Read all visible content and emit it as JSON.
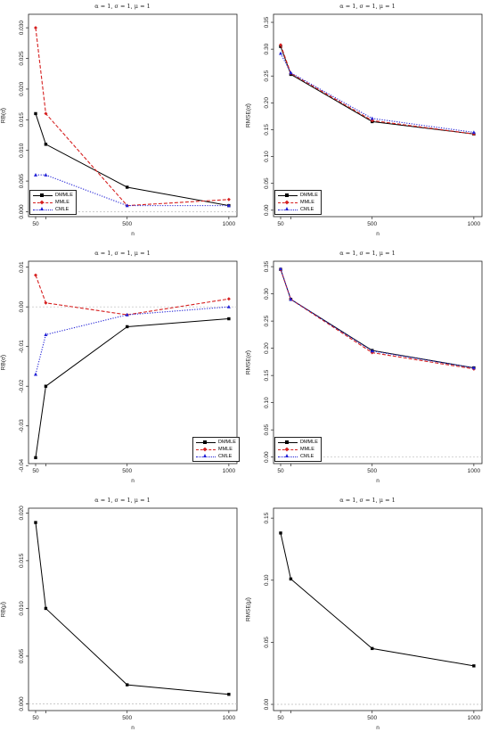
{
  "chart_data": [
    {
      "type": "line",
      "title": "α = 1, σ = 1, μ = 1",
      "xlabel": "n",
      "ylabel": "RB(α̂)",
      "x": [
        50,
        100,
        500,
        1000
      ],
      "xticks": [
        "50",
        "500",
        "1000"
      ],
      "ylim": [
        -0.0008,
        0.0322
      ],
      "yticks": [
        "0.000",
        "0.005",
        "0.010",
        "0.015",
        "0.020",
        "0.025",
        "0.030"
      ],
      "yref": 0,
      "legend_position": "bottom-left",
      "series": [
        {
          "name": "DMMLE",
          "color": "#000000",
          "values": [
            0.016,
            0.011,
            0.004,
            0.001
          ]
        },
        {
          "name": "MMLE",
          "color": "#d62020",
          "values": [
            0.03,
            0.016,
            0.001,
            0.002
          ]
        },
        {
          "name": "CMLE",
          "color": "#2020d6",
          "values": [
            0.006,
            0.006,
            0.001,
            0.001
          ]
        }
      ]
    },
    {
      "type": "line",
      "title": "α = 1, σ = 1, μ = 1",
      "xlabel": "n",
      "ylabel": "RMSE(α̂)",
      "x": [
        50,
        100,
        500,
        1000
      ],
      "xticks": [
        "50",
        "500",
        "1000"
      ],
      "ylim": [
        -0.012,
        0.365
      ],
      "yticks": [
        "0.00",
        "0.05",
        "0.10",
        "0.15",
        "0.20",
        "0.25",
        "0.30",
        "0.35"
      ],
      "yref": null,
      "legend_position": "bottom-left",
      "series": [
        {
          "name": "DMMLE",
          "color": "#000000",
          "values": [
            0.305,
            0.253,
            0.165,
            0.142
          ]
        },
        {
          "name": "MMLE",
          "color": "#d62020",
          "values": [
            0.308,
            0.255,
            0.167,
            0.142
          ]
        },
        {
          "name": "CMLE",
          "color": "#2020d6",
          "values": [
            0.292,
            0.256,
            0.171,
            0.145
          ]
        }
      ]
    },
    {
      "type": "line",
      "title": "α = 1, σ = 1, μ = 1",
      "xlabel": "n",
      "ylabel": "RB(σ̂)",
      "x": [
        50,
        100,
        500,
        1000
      ],
      "xticks": [
        "50",
        "500",
        "1000"
      ],
      "ylim": [
        -0.0395,
        0.0115
      ],
      "yticks": [
        "-0.04",
        "-0.03",
        "-0.02",
        "-0.01",
        "0.00",
        "0.01"
      ],
      "yref": 0,
      "legend_position": "bottom-right",
      "series": [
        {
          "name": "DMMLE",
          "color": "#000000",
          "values": [
            -0.038,
            -0.02,
            -0.005,
            -0.003
          ]
        },
        {
          "name": "MMLE",
          "color": "#d62020",
          "values": [
            0.008,
            0.001,
            -0.002,
            0.002
          ]
        },
        {
          "name": "CMLE",
          "color": "#2020d6",
          "values": [
            -0.017,
            -0.007,
            -0.002,
            0.0
          ]
        }
      ]
    },
    {
      "type": "line",
      "title": "α = 1, σ = 1, μ = 1",
      "xlabel": "n",
      "ylabel": "RMSE(σ̂)",
      "x": [
        50,
        100,
        500,
        1000
      ],
      "xticks": [
        "50",
        "500",
        "1000"
      ],
      "ylim": [
        -0.012,
        0.36
      ],
      "yticks": [
        "0.00",
        "0.05",
        "0.10",
        "0.15",
        "0.20",
        "0.25",
        "0.30",
        "0.35"
      ],
      "yref": 0,
      "legend_position": "bottom-left",
      "series": [
        {
          "name": "DMMLE",
          "color": "#000000",
          "values": [
            0.345,
            0.29,
            0.196,
            0.164
          ]
        },
        {
          "name": "MMLE",
          "color": "#d62020",
          "values": [
            0.345,
            0.29,
            0.192,
            0.162
          ]
        },
        {
          "name": "CMLE",
          "color": "#2020d6",
          "values": [
            0.346,
            0.29,
            0.195,
            0.164
          ]
        }
      ]
    },
    {
      "type": "line",
      "title": "α = 1, σ = 1, μ = 1",
      "xlabel": "n",
      "ylabel": "RB(μ̂)",
      "x": [
        50,
        100,
        500,
        1000
      ],
      "xticks": [
        "50",
        "500",
        "1000"
      ],
      "ylim": [
        -0.0007,
        0.0205
      ],
      "yticks": [
        "0.000",
        "0.005",
        "0.010",
        "0.015",
        "0.020"
      ],
      "yref": 0,
      "legend_position": "none",
      "series": [
        {
          "color": "#000000",
          "values": [
            0.019,
            0.01,
            0.002,
            0.001
          ]
        }
      ]
    },
    {
      "type": "line",
      "title": "α = 1, σ = 1, μ = 1",
      "xlabel": "n",
      "ylabel": "RMSE(μ̂)",
      "x": [
        50,
        100,
        500,
        1000
      ],
      "xticks": [
        "50",
        "500",
        "1000"
      ],
      "ylim": [
        -0.005,
        0.158
      ],
      "yticks": [
        "0.00",
        "0.05",
        "0.10",
        "0.15"
      ],
      "yref": 0,
      "legend_position": "none",
      "series": [
        {
          "color": "#000000",
          "values": [
            0.138,
            0.101,
            0.045,
            0.031
          ]
        }
      ]
    }
  ]
}
